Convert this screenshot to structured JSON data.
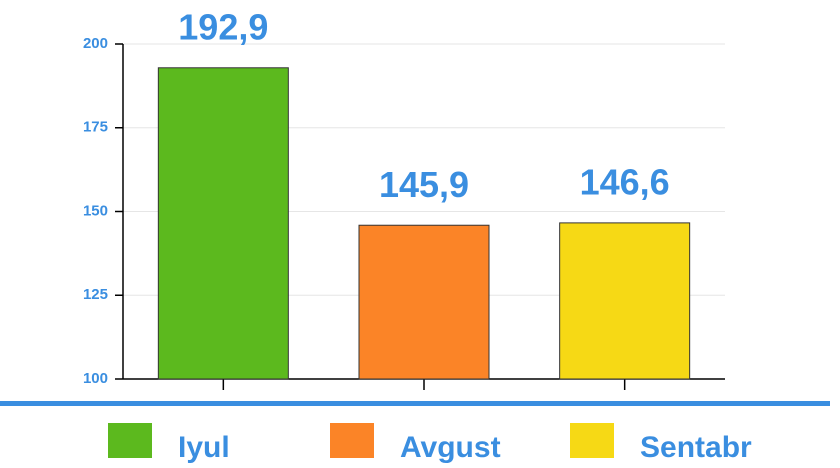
{
  "chart_data": {
    "type": "bar",
    "categories": [
      "Iyul",
      "Avgust",
      "Sentabr"
    ],
    "values": [
      192.9,
      145.9,
      146.6
    ],
    "value_labels": [
      "192,9",
      "145,9",
      "146,6"
    ],
    "colors": [
      "#5cb91e",
      "#fb8427",
      "#f6d915"
    ],
    "ylim": [
      100,
      200
    ],
    "yticks": [
      100,
      125,
      150,
      175,
      200
    ],
    "grid": true,
    "legend": "bottom"
  }
}
